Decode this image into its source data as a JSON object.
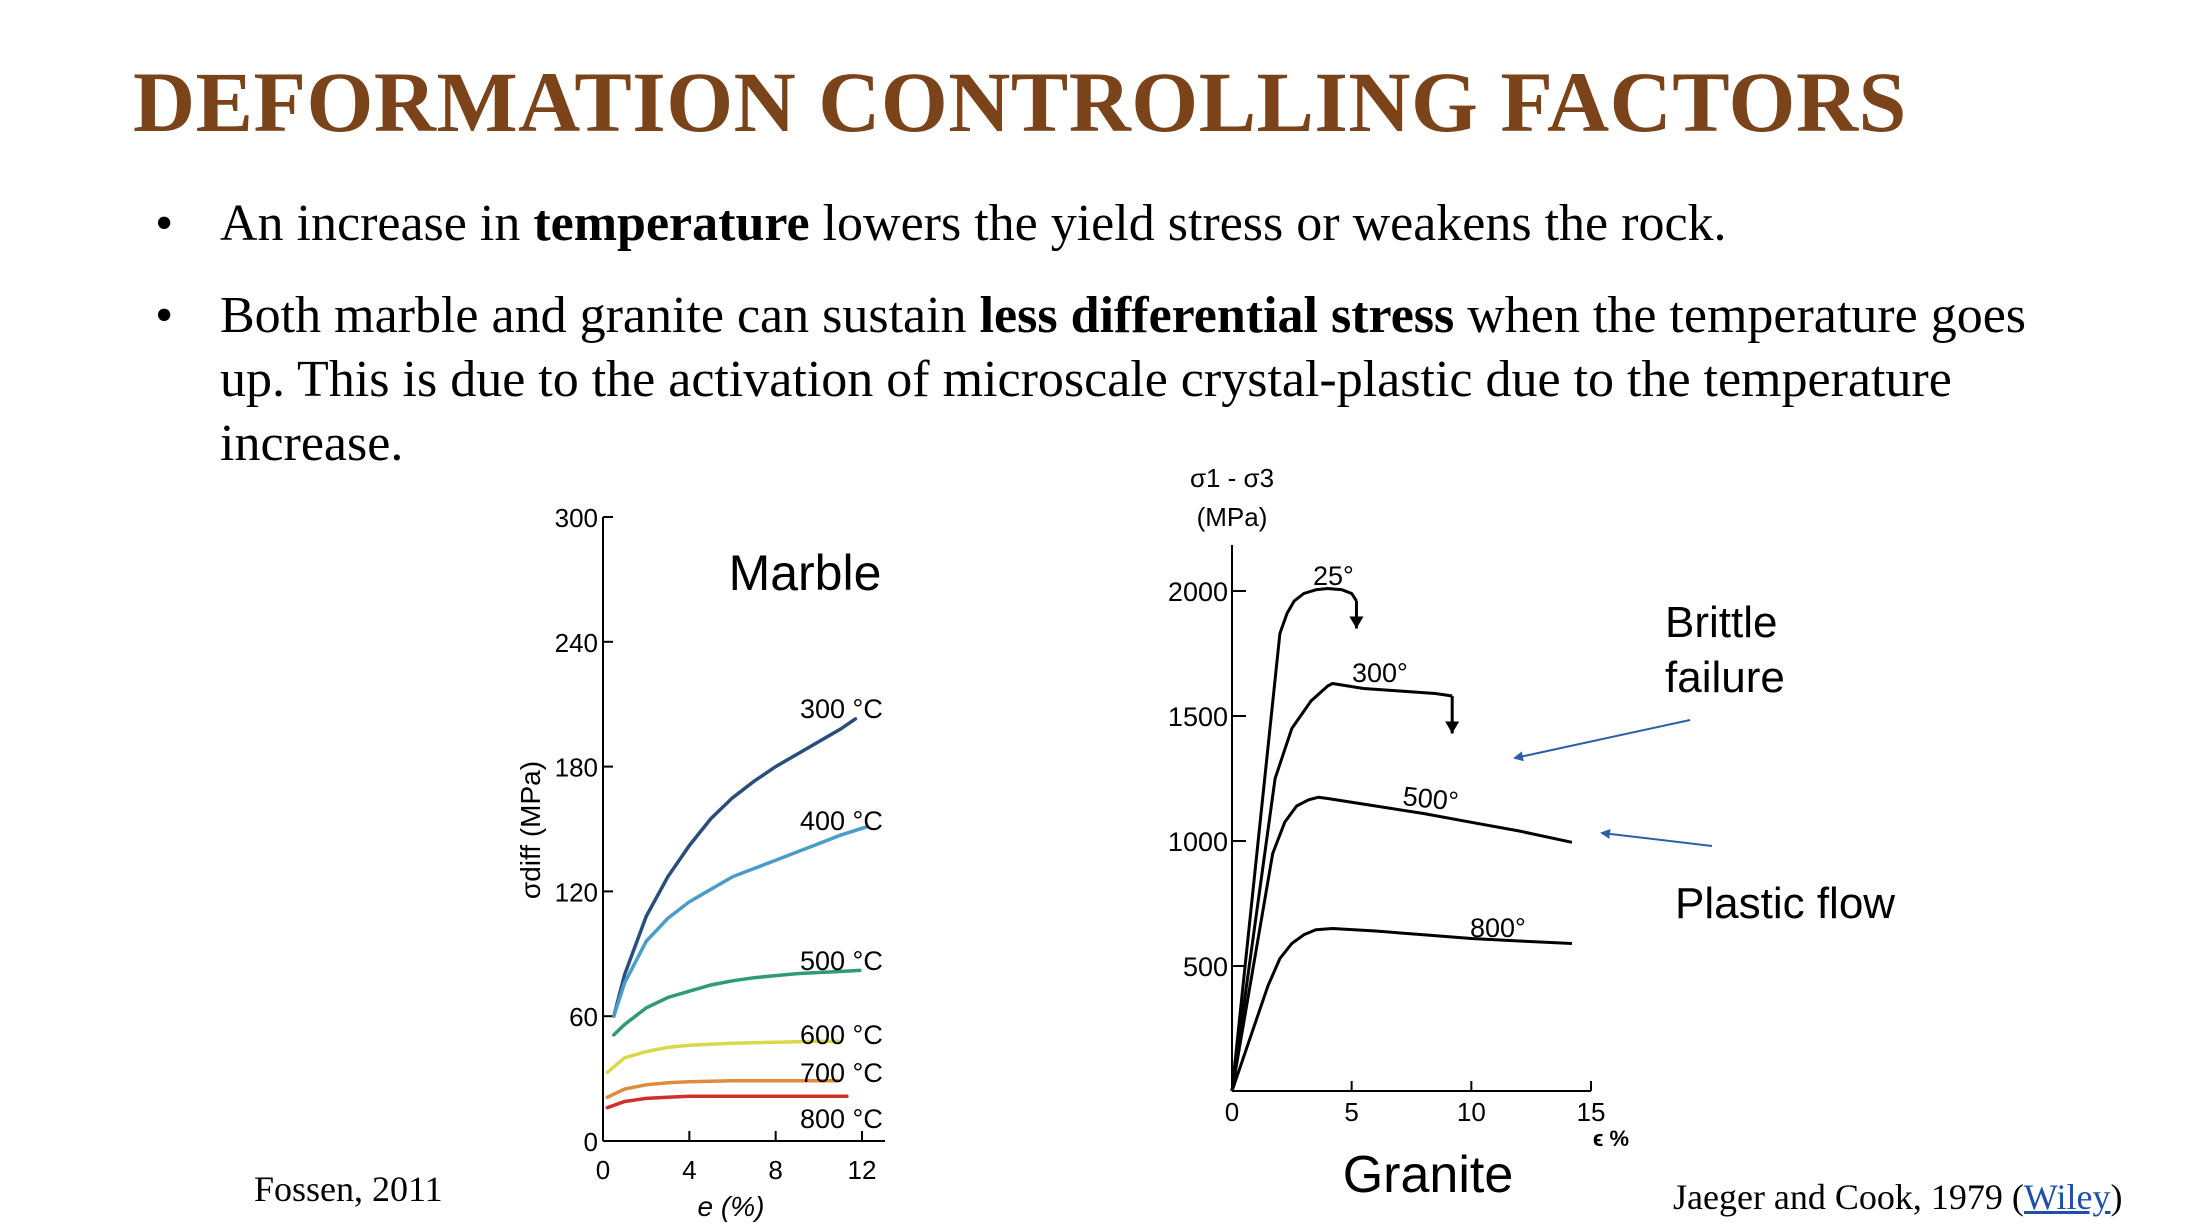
{
  "slide": {
    "title": "DEFORMATION CONTROLLING FACTORS",
    "bullets": [
      {
        "pre": "An increase in ",
        "bold": "temperature",
        "post": " lowers the yield stress or weakens the rock."
      },
      {
        "pre": "Both marble and granite can sustain ",
        "bold": "less differential stress",
        "post": " when the temperature goes up. This is due to the activation of microscale crystal-plastic due to the temperature increase."
      }
    ],
    "left_source": "Fossen, 2011",
    "right_source_prefix": "Jaeger and Cook, 1979 (",
    "right_source_link": "Wiley",
    "right_source_suffix": ")"
  },
  "chart_data": [
    {
      "type": "line",
      "title": "Marble",
      "xlabel": "e (%)",
      "ylabel": "σdiff (MPa)",
      "xlim": [
        0,
        13
      ],
      "ylim": [
        0,
        300
      ],
      "xticks": [
        0,
        4,
        8,
        12
      ],
      "yticks": [
        0,
        60,
        120,
        180,
        240,
        300
      ],
      "series": [
        {
          "name": "300 °C",
          "color": "#284e7d",
          "x": [
            0.5,
            1,
            2,
            3,
            4,
            5,
            6,
            7,
            8,
            9,
            10,
            11,
            11.7
          ],
          "y": [
            60,
            80,
            108,
            127,
            142,
            155,
            165,
            173,
            180,
            186,
            192,
            198,
            203
          ]
        },
        {
          "name": "400 °C",
          "color": "#4a9cc9",
          "x": [
            0.5,
            1,
            2,
            3,
            4,
            5,
            6,
            7,
            8,
            9,
            10,
            11,
            12.2
          ],
          "y": [
            60,
            76,
            96,
            107,
            115,
            121,
            127,
            131,
            135,
            139,
            143,
            147,
            151
          ]
        },
        {
          "name": "500 °C",
          "color": "#2f9a7a",
          "x": [
            0.5,
            1,
            2,
            3,
            4,
            5,
            6,
            7,
            8,
            9,
            10,
            11,
            11.9
          ],
          "y": [
            51,
            56,
            64,
            69,
            72,
            75,
            77,
            78.5,
            79.5,
            80.5,
            81,
            81.5,
            82
          ]
        },
        {
          "name": "600 °C",
          "color": "#d8d84a",
          "x": [
            0.2,
            1,
            2,
            3,
            4,
            6,
            8,
            10,
            10.9
          ],
          "y": [
            33,
            40,
            43,
            45,
            46,
            47,
            47.5,
            48,
            48
          ]
        },
        {
          "name": "700 °C",
          "color": "#de8b3c",
          "x": [
            0.2,
            1,
            2,
            3,
            4,
            6,
            8,
            10,
            10.9
          ],
          "y": [
            21,
            25,
            27,
            28,
            28.5,
            29,
            29,
            29,
            29
          ]
        },
        {
          "name": "800 °C",
          "color": "#cf3029",
          "x": [
            0.2,
            1,
            2,
            3,
            4,
            6,
            8,
            10,
            11.3
          ],
          "y": [
            16,
            19,
            20.5,
            21,
            21.5,
            21.5,
            21.5,
            21.5,
            21.5
          ]
        }
      ]
    },
    {
      "type": "line",
      "title": "Granite",
      "xlabel": "ϵ %",
      "ylabel": "σ1 - σ3 (MPa)",
      "xlim": [
        0,
        15
      ],
      "ylim": [
        0,
        2000
      ],
      "xticks": [
        0,
        5,
        10,
        15
      ],
      "yticks": [
        500,
        1000,
        1500,
        2000
      ],
      "series": [
        {
          "name": "25°",
          "color": "#000000",
          "x": [
            0,
            2,
            2.3,
            2.6,
            3.0,
            3.5,
            4.0,
            4.6,
            5.0,
            5.2
          ],
          "y": [
            0,
            1830,
            1910,
            1960,
            1990,
            2005,
            2010,
            2005,
            1990,
            1960
          ],
          "drop_to": 1850
        },
        {
          "name": "300°",
          "color": "#000000",
          "x": [
            0,
            1.8,
            2.5,
            3.3,
            4.0,
            4.2,
            5.5,
            7.0,
            8.5,
            9.2
          ],
          "y": [
            0,
            1250,
            1450,
            1560,
            1620,
            1630,
            1610,
            1600,
            1590,
            1580
          ],
          "drop_to": 1430
        },
        {
          "name": "500°",
          "color": "#000000",
          "x": [
            0,
            1.7,
            2.2,
            2.7,
            3.2,
            3.6,
            4.0,
            6,
            8,
            10,
            12,
            14.2
          ],
          "y": [
            0,
            950,
            1075,
            1140,
            1165,
            1175,
            1170,
            1140,
            1110,
            1075,
            1040,
            995
          ]
        },
        {
          "name": "800°",
          "color": "#000000",
          "x": [
            0,
            1.5,
            2.0,
            2.5,
            3.0,
            3.5,
            4.2,
            6,
            8,
            10,
            12,
            14.2
          ],
          "y": [
            0,
            420,
            530,
            590,
            625,
            645,
            650,
            640,
            625,
            610,
            600,
            590
          ]
        }
      ],
      "annotations": [
        "Brittle failure",
        "Plastic flow"
      ]
    }
  ]
}
